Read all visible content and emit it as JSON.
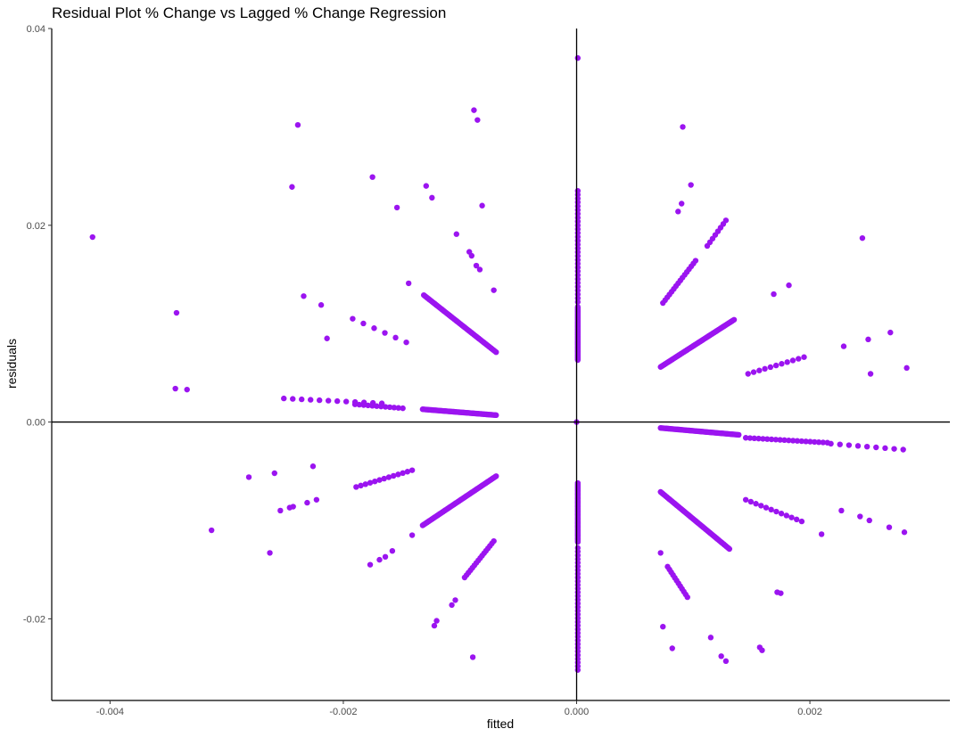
{
  "chart_data": {
    "type": "scatter",
    "title": "Residual Plot % Change vs Lagged % Change Regression",
    "xlabel": "fitted",
    "ylabel": "residuals",
    "xlim": [
      -0.0045,
      0.0032
    ],
    "ylim": [
      -0.0283,
      0.04
    ],
    "x_ticks": [
      -0.004,
      -0.002,
      0.0,
      0.002
    ],
    "x_tick_labels": [
      "-0.004",
      "-0.002",
      "0.000",
      "0.002"
    ],
    "y_ticks": [
      -0.02,
      0.0,
      0.02,
      0.04
    ],
    "y_tick_labels": [
      "-0.02",
      "0.00",
      "0.02",
      "0.04"
    ],
    "reference_lines": {
      "x": 0,
      "y": 0
    },
    "grid": false,
    "point_color": "#9B14F0",
    "points": [
      [
        -0.00415,
        0.0188
      ],
      [
        -0.00343,
        0.0111
      ],
      [
        -0.00344,
        0.0034
      ],
      [
        -0.00334,
        0.0033
      ],
      [
        -0.00313,
        -0.011
      ],
      [
        -0.00281,
        -0.0056
      ],
      [
        -0.00263,
        -0.0133
      ],
      [
        -0.00259,
        -0.0052
      ],
      [
        -0.00254,
        -0.009
      ],
      [
        -0.00246,
        -0.0087
      ],
      [
        -0.00243,
        -0.0086
      ],
      [
        -0.00231,
        -0.0082
      ],
      [
        -0.00226,
        -0.0045
      ],
      [
        -0.00223,
        -0.0079
      ],
      [
        -0.00244,
        0.0239
      ],
      [
        -0.00239,
        0.0302
      ],
      [
        -0.00234,
        0.0128
      ],
      [
        -0.00219,
        0.0119
      ],
      [
        -0.00214,
        0.0085
      ],
      [
        -0.00175,
        0.0249
      ],
      [
        -0.00154,
        0.0218
      ],
      [
        -0.00129,
        0.024
      ],
      [
        -0.00124,
        0.0228
      ],
      [
        -0.00103,
        0.0191
      ],
      [
        -0.00092,
        0.0173
      ],
      [
        -0.0009,
        0.0169
      ],
      [
        -0.00086,
        0.0159
      ],
      [
        -0.00083,
        0.0155
      ],
      [
        -0.00081,
        0.022
      ],
      [
        -0.00088,
        0.0317
      ],
      [
        -0.00085,
        0.0307
      ],
      [
        -0.00071,
        0.0134
      ],
      [
        -0.00144,
        0.0141
      ],
      [
        -0.00177,
        -0.0145
      ],
      [
        -0.00169,
        -0.014
      ],
      [
        -0.00164,
        -0.0137
      ],
      [
        -0.00158,
        -0.0131
      ],
      [
        -0.00141,
        -0.0115
      ],
      [
        -0.00122,
        -0.0207
      ],
      [
        -0.0012,
        -0.0202
      ],
      [
        -0.00107,
        -0.0186
      ],
      [
        -0.00104,
        -0.0181
      ],
      [
        -0.00089,
        -0.0239
      ],
      [
        1e-05,
        0.037
      ],
      [
        0.00091,
        0.03
      ],
      [
        0.00098,
        0.0241
      ],
      [
        0.00087,
        0.0214
      ],
      [
        0.0009,
        0.0222
      ],
      [
        0.00169,
        0.013
      ],
      [
        0.00182,
        0.0139
      ],
      [
        0.00245,
        0.0187
      ],
      [
        0.00229,
        0.0077
      ],
      [
        0.0025,
        0.0084
      ],
      [
        0.00269,
        0.0091
      ],
      [
        0.00283,
        0.0055
      ],
      [
        0.00252,
        0.0049
      ],
      [
        0.00072,
        -0.0133
      ],
      [
        0.00074,
        -0.0208
      ],
      [
        0.00082,
        -0.023
      ],
      [
        0.00115,
        -0.0219
      ],
      [
        0.00124,
        -0.0238
      ],
      [
        0.00128,
        -0.0243
      ],
      [
        0.00172,
        -0.0173
      ],
      [
        0.00175,
        -0.0174
      ],
      [
        0.00157,
        -0.0229
      ],
      [
        0.00159,
        -0.0232
      ],
      [
        0.0021,
        -0.0114
      ],
      [
        0.00227,
        -0.009
      ],
      [
        0.00243,
        -0.0096
      ],
      [
        0.00251,
        -0.01
      ],
      [
        0.00268,
        -0.0107
      ],
      [
        0.00281,
        -0.0112
      ],
      [
        0.0,
        0.0
      ]
    ],
    "segments": [
      {
        "from": [
          -0.00131,
          0.0129
        ],
        "to": [
          -0.00069,
          0.0071
        ],
        "n": 70
      },
      {
        "from": [
          -0.00132,
          0.0013
        ],
        "to": [
          -0.00069,
          0.0007
        ],
        "n": 70
      },
      {
        "from": [
          -0.00132,
          -0.0105
        ],
        "to": [
          -0.00069,
          -0.0055
        ],
        "n": 70
      },
      {
        "from": [
          -0.00096,
          -0.0158
        ],
        "to": [
          -0.00071,
          -0.0121
        ],
        "n": 16
      },
      {
        "from": [
          -0.00192,
          0.0105
        ],
        "to": [
          -0.00146,
          0.0081
        ],
        "n": 6
      },
      {
        "from": [
          -0.00251,
          0.0024
        ],
        "to": [
          -0.00167,
          0.0019
        ],
        "n": 12
      },
      {
        "from": [
          -0.0019,
          0.0018
        ],
        "to": [
          -0.00149,
          0.0014
        ],
        "n": 12
      },
      {
        "from": [
          -0.00189,
          -0.0066
        ],
        "to": [
          -0.00141,
          -0.0049
        ],
        "n": 13
      },
      {
        "from": [
          0.00072,
          -0.0006
        ],
        "to": [
          0.00139,
          -0.0013
        ],
        "n": 70
      },
      {
        "from": [
          0.00145,
          -0.0016
        ],
        "to": [
          0.00215,
          -0.0021
        ],
        "n": 20
      },
      {
        "from": [
          0.00218,
          -0.0022
        ],
        "to": [
          0.0028,
          -0.0028
        ],
        "n": 9
      },
      {
        "from": [
          0.00072,
          0.0056
        ],
        "to": [
          0.00135,
          0.0104
        ],
        "n": 70
      },
      {
        "from": [
          0.00074,
          0.0121
        ],
        "to": [
          0.00102,
          0.0164
        ],
        "n": 16
      },
      {
        "from": [
          0.00112,
          0.0179
        ],
        "to": [
          0.00128,
          0.0205
        ],
        "n": 8
      },
      {
        "from": [
          0.00072,
          -0.0071
        ],
        "to": [
          0.00131,
          -0.0129
        ],
        "n": 70
      },
      {
        "from": [
          0.00078,
          -0.0147
        ],
        "to": [
          0.00095,
          -0.0178
        ],
        "n": 12
      },
      {
        "from": [
          0.00147,
          0.0049
        ],
        "to": [
          0.00195,
          0.0066
        ],
        "n": 11
      },
      {
        "from": [
          0.00145,
          -0.0079
        ],
        "to": [
          0.00193,
          -0.0101
        ],
        "n": 12
      },
      {
        "from": [
          1e-05,
          0.0063
        ],
        "to": [
          1e-05,
          0.0117
        ],
        "n": 50
      },
      {
        "from": [
          1e-05,
          0.0122
        ],
        "to": [
          1e-05,
          0.0235
        ],
        "n": 30
      },
      {
        "from": [
          1e-05,
          -0.0062
        ],
        "to": [
          1e-05,
          -0.0122
        ],
        "n": 50
      },
      {
        "from": [
          1e-05,
          -0.0128
        ],
        "to": [
          1e-05,
          -0.0252
        ],
        "n": 34
      }
    ]
  }
}
